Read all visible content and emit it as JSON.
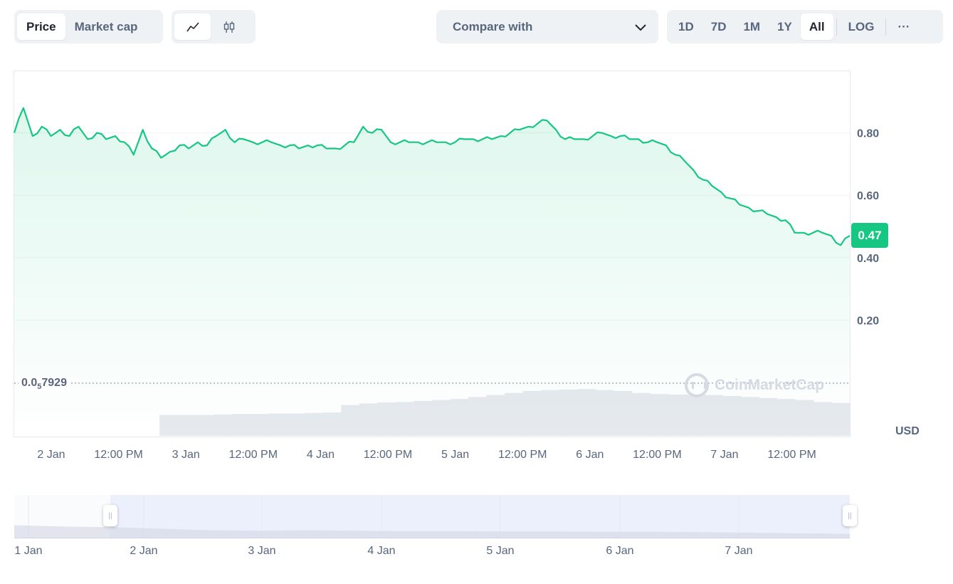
{
  "toolbar": {
    "metric_tabs": [
      "Price",
      "Market cap"
    ],
    "active_metric": "Price",
    "chart_type_icons": [
      "line-chart-icon",
      "candlestick-icon"
    ],
    "compare_label": "Compare with",
    "range_tabs": [
      "1D",
      "7D",
      "1M",
      "1Y",
      "All"
    ],
    "active_range": "All",
    "log_label": "LOG",
    "more_label": "···"
  },
  "currency_label": "USD",
  "current_price_label": "0.47",
  "min_price_label": {
    "prefix": "0.0",
    "subscript": "5",
    "suffix": "7929"
  },
  "watermark": "CoinMarketCap",
  "colors": {
    "line": "#16c784",
    "badge": "#16c784",
    "volume": "#e6e9ee",
    "navigator_fill": "#e8ecfb"
  },
  "chart_data": {
    "type": "area",
    "currency": "USD",
    "ylim": [
      0,
      1
    ],
    "yticks": [
      0.2,
      0.4,
      0.6,
      0.8
    ],
    "ytick_labels": [
      "0.20",
      "0.40",
      "0.60",
      "0.80"
    ],
    "xtick_labels": [
      "2 Jan",
      "12:00 PM",
      "3 Jan",
      "12:00 PM",
      "4 Jan",
      "12:00 PM",
      "5 Jan",
      "12:00 PM",
      "6 Jan",
      "12:00 PM",
      "7 Jan",
      "12:00 PM"
    ],
    "x_start": "1 Jan 18:00",
    "x_end": "7 Jan 22:00",
    "series": [
      {
        "values": [
          0.8,
          0.88,
          0.79,
          0.82,
          0.79,
          0.81,
          0.79,
          0.82,
          0.78,
          0.8,
          0.78,
          0.79,
          0.77,
          0.73,
          0.81,
          0.75,
          0.72,
          0.74,
          0.76,
          0.75,
          0.77,
          0.76,
          0.79,
          0.81,
          0.77,
          0.78,
          0.77,
          0.77,
          0.77,
          0.76,
          0.76,
          0.75,
          0.76,
          0.76,
          0.75,
          0.75,
          0.76,
          0.77,
          0.82,
          0.8,
          0.81,
          0.77,
          0.77,
          0.77,
          0.77,
          0.77,
          0.77,
          0.77,
          0.77,
          0.78,
          0.78,
          0.78,
          0.78,
          0.79,
          0.8,
          0.81,
          0.82,
          0.83,
          0.84,
          0.81,
          0.78,
          0.78,
          0.78,
          0.79,
          0.8,
          0.79,
          0.79,
          0.78,
          0.78,
          0.77,
          0.77,
          0.76,
          0.73,
          0.71,
          0.68,
          0.65,
          0.63,
          0.61,
          0.59,
          0.57,
          0.56,
          0.55,
          0.54,
          0.53,
          0.52,
          0.48,
          0.48,
          0.48,
          0.48,
          0.47,
          0.44,
          0.47
        ]
      }
    ],
    "volume_relative": [
      0.0,
      0.0,
      0.0,
      0.0,
      0.0,
      0.0,
      0.0,
      0.0,
      0.42,
      0.42,
      0.42,
      0.43,
      0.44,
      0.44,
      0.45,
      0.45,
      0.46,
      0.47,
      0.62,
      0.65,
      0.67,
      0.68,
      0.7,
      0.72,
      0.74,
      0.78,
      0.82,
      0.86,
      0.9,
      0.92,
      0.93,
      0.94,
      0.92,
      0.9,
      0.86,
      0.84,
      0.83,
      0.83,
      0.82,
      0.8,
      0.78,
      0.76,
      0.74,
      0.72,
      0.68,
      0.66
    ],
    "navigator": {
      "labels": [
        "1 Jan",
        "2 Jan",
        "3 Jan",
        "4 Jan",
        "5 Jan",
        "6 Jan",
        "7 Jan"
      ],
      "selection": "1 Jan 18:00 – 7 Jan 22:00"
    }
  }
}
